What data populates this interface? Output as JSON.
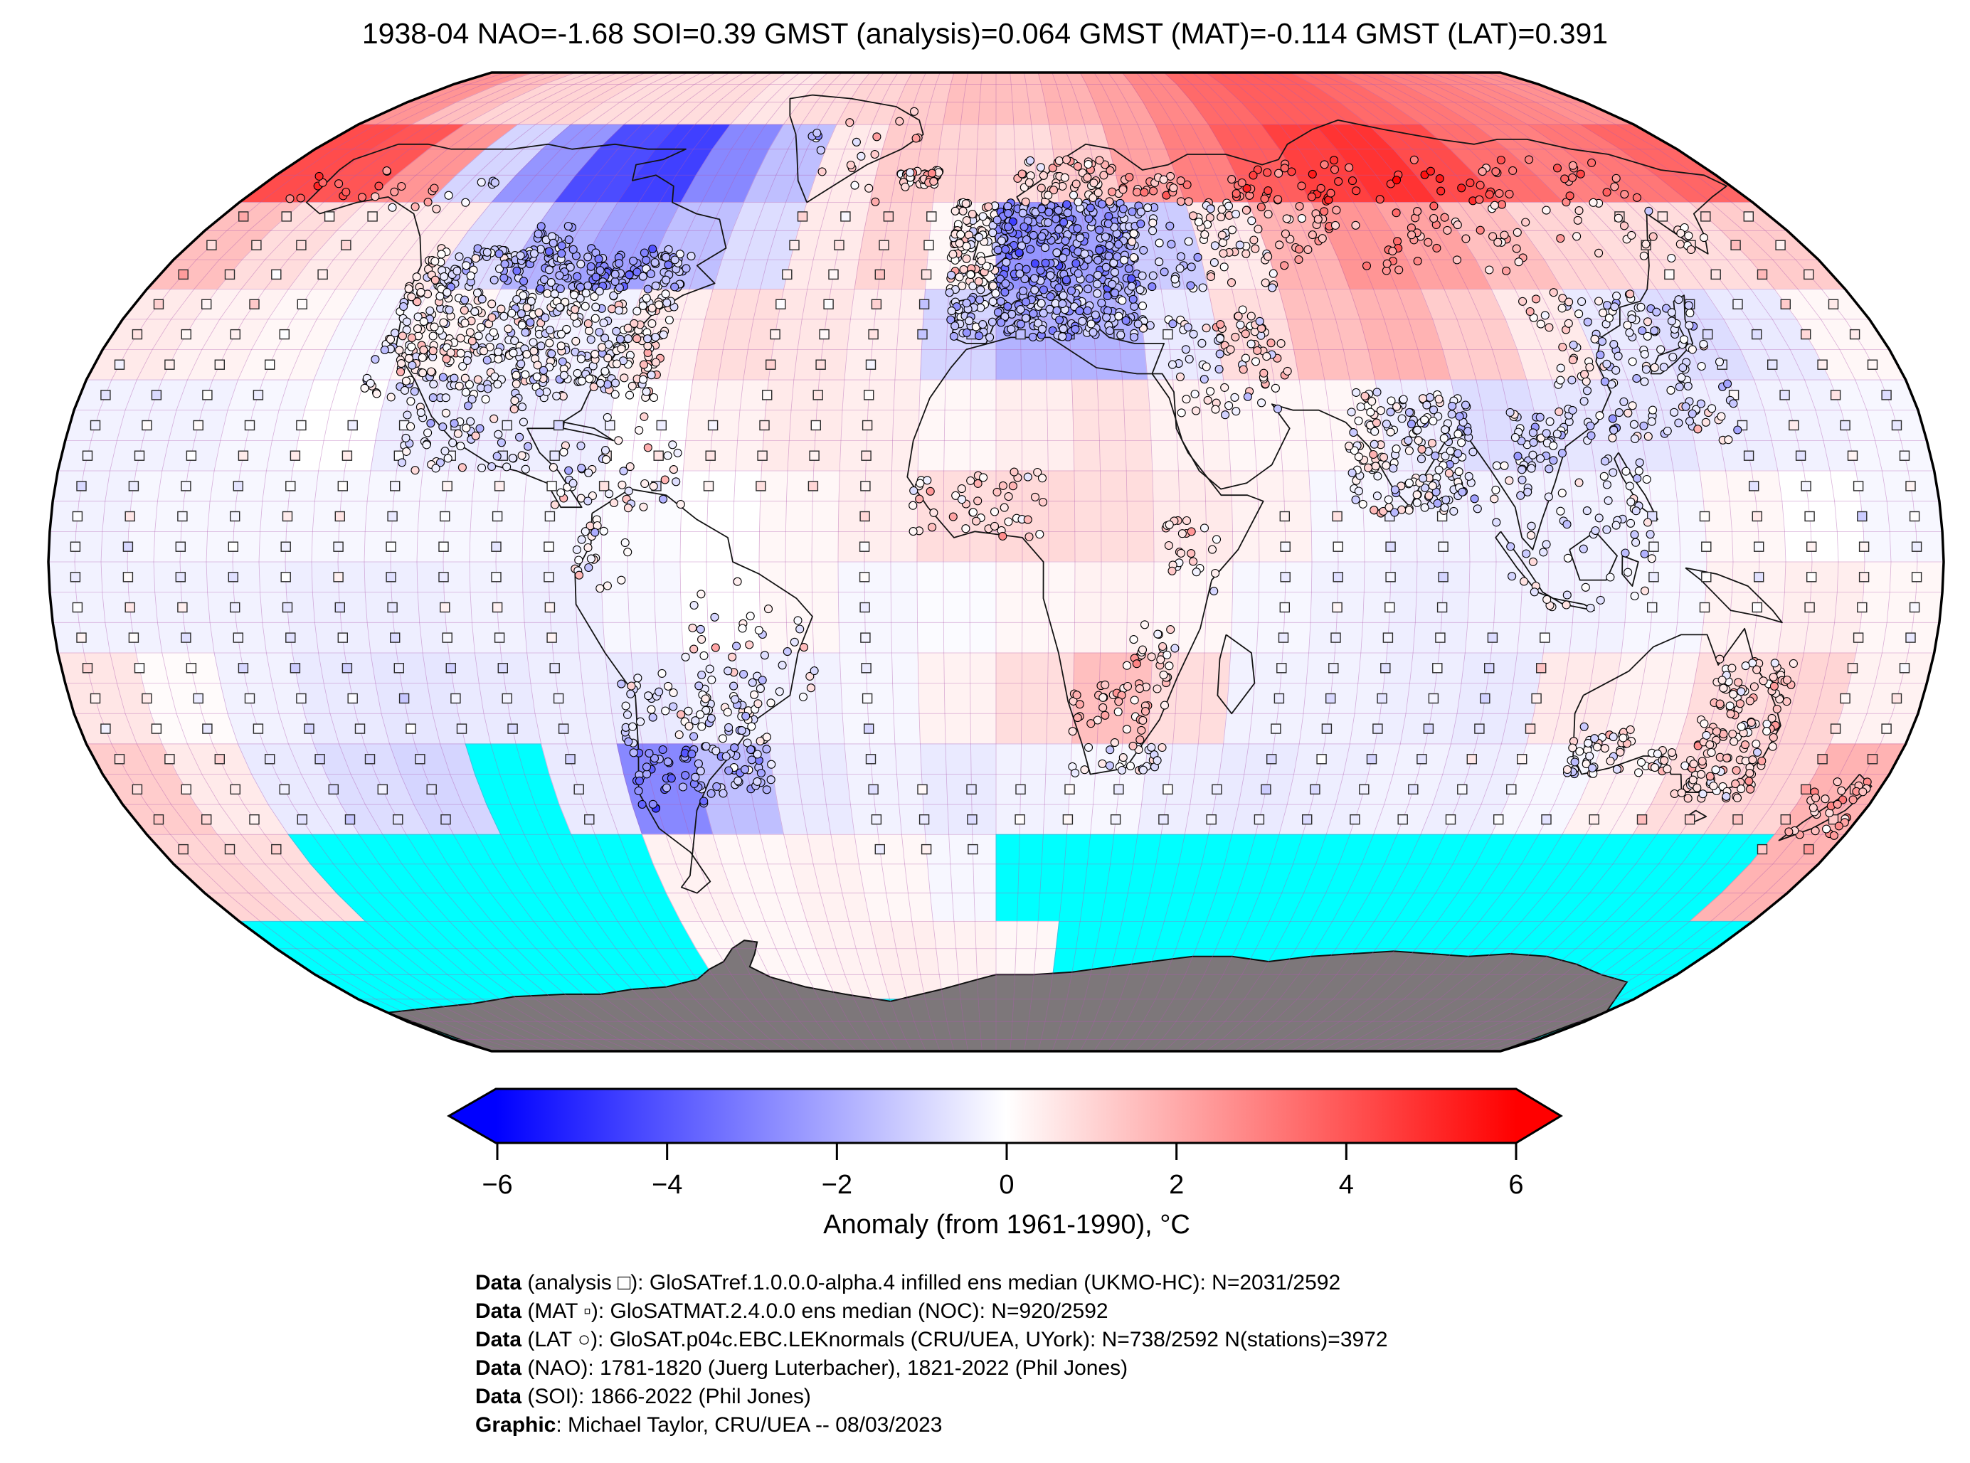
{
  "title": "1938-04 NAO=-1.68 SOI=0.39 GMST (analysis)=0.064 GMST (MAT)=-0.114 GMST (LAT)=0.391",
  "colorbar": {
    "label": "Anomaly (from 1961-1990), °C",
    "tick_labels": [
      "−6",
      "−4",
      "−2",
      "0",
      "2",
      "4",
      "6"
    ],
    "tick_values": [
      -6,
      -4,
      -2,
      0,
      2,
      4,
      6
    ]
  },
  "footer": {
    "lines": [
      {
        "bold": "Data",
        "rest": " (analysis □): GloSATref.1.0.0.0-alpha.4 infilled ens median (UKMO-HC): N=2031/2592"
      },
      {
        "bold": "Data",
        "rest": " (MAT ▫): GloSATMAT.2.4.0.0 ens median (NOC): N=920/2592"
      },
      {
        "bold": "Data",
        "rest": " (LAT ○): GloSAT.p04c.EBC.LEKnormals (CRU/UEA, UYork): N=738/2592 N(stations)=3972"
      },
      {
        "bold": "Data",
        "rest": " (NAO): 1781-1820 (Juerg Luterbacher), 1821-2022 (Phil Jones)"
      },
      {
        "bold": "Data",
        "rest": " (SOI): 1866-2022 (Phil Jones)"
      },
      {
        "bold": "Graphic",
        "rest": ": Michael Taylor, CRU/UEA -- 08/03/2023"
      }
    ]
  },
  "chart_data": {
    "type": "heatmap",
    "projection": "robinson",
    "date": "1938-04",
    "indices": {
      "NAO": -1.68,
      "SOI": 0.39,
      "GMST_analysis": 0.064,
      "GMST_MAT": -0.114,
      "GMST_LAT": 0.391
    },
    "anomaly_units": "°C anomaly from 1961-1990",
    "colormap": {
      "min": -6,
      "max": 6,
      "low": "#0000ff",
      "mid": "#ffffff",
      "high": "#ff0000"
    },
    "colors": {
      "missing_data": "#00ffff",
      "antarctica_land": "#7d777a",
      "graticule": "#b05ab0",
      "coastline": "#141414",
      "outline": "#000000"
    },
    "graticule_step_deg": 5,
    "legend_counts": {
      "analysis": "N=2031/2592",
      "mat": "N=920/2592",
      "lat": "N=738/2592",
      "stations": "N(stations)=3972"
    },
    "grid": {
      "lat_start": 90,
      "lat_step": -15,
      "lon_start": -180,
      "lon_step": 15,
      "rows": 12,
      "cols": 24,
      "missing_value": null,
      "values": [
        [
          2.5,
          1.5,
          1.0,
          1.0,
          0.8,
          0.8,
          0.8,
          0.6,
          0.8,
          1.0,
          1.2,
          1.5,
          1.5,
          1.8,
          2.2,
          2.8,
          3.5,
          3.8,
          3.8,
          3.5,
          3.2,
          3.0,
          2.8,
          2.6
        ],
        [
          4.2,
          4.0,
          2.5,
          -1.0,
          -2.5,
          -4.2,
          -4.5,
          -2.8,
          -1.5,
          0.5,
          1.2,
          1.0,
          0.8,
          1.2,
          2.2,
          3.0,
          3.8,
          4.5,
          4.8,
          4.2,
          3.4,
          3.0,
          3.2,
          3.6
        ],
        [
          1.5,
          0.8,
          0.5,
          0.5,
          -0.8,
          -1.8,
          -2.2,
          -1.5,
          -0.8,
          0.5,
          1.0,
          0.2,
          -2.5,
          -2.2,
          -1.2,
          0.5,
          1.8,
          2.5,
          2.2,
          1.5,
          1.0,
          0.8,
          0.8,
          1.2
        ],
        [
          0.5,
          0.3,
          0.2,
          -0.2,
          0.2,
          -0.3,
          -0.3,
          0.4,
          0.8,
          0.6,
          0.4,
          -1.0,
          -1.8,
          -1.8,
          -0.5,
          0.8,
          1.5,
          1.8,
          1.2,
          0.5,
          -0.5,
          -0.8,
          -0.5,
          0.2
        ],
        [
          -0.3,
          -0.3,
          -0.2,
          0.0,
          -0.4,
          -0.4,
          -0.4,
          0.0,
          0.3,
          0.5,
          0.4,
          0.2,
          0.4,
          0.7,
          0.3,
          0.2,
          0.2,
          -0.4,
          -0.8,
          -0.6,
          -0.6,
          -0.4,
          -0.3,
          -0.2
        ],
        [
          -0.3,
          -0.2,
          -0.2,
          -0.2,
          -0.2,
          -0.2,
          -0.2,
          -0.1,
          0.0,
          0.2,
          0.4,
          0.8,
          0.9,
          0.8,
          0.5,
          0.3,
          -0.2,
          -0.3,
          -0.3,
          -0.3,
          -0.2,
          0.2,
          0.0,
          -0.2
        ],
        [
          -0.3,
          -0.3,
          -0.3,
          -0.4,
          -0.4,
          -0.3,
          -0.4,
          -0.2,
          0.0,
          0.2,
          -0.2,
          -0.1,
          0.2,
          0.3,
          0.2,
          -0.2,
          -0.3,
          -0.4,
          -0.3,
          -0.3,
          -0.2,
          0.3,
          0.4,
          0.2
        ],
        [
          0.6,
          0.1,
          -0.3,
          -0.5,
          -0.6,
          -0.5,
          -0.4,
          -0.5,
          -0.3,
          -0.3,
          -0.2,
          0.3,
          0.8,
          1.5,
          0.8,
          -0.3,
          -0.3,
          -0.4,
          -0.5,
          0.5,
          0.3,
          0.8,
          1.0,
          0.3
        ],
        [
          1.2,
          0.5,
          -0.5,
          -0.8,
          -1.0,
          null,
          -0.5,
          -2.8,
          -1.5,
          -0.5,
          -0.3,
          -0.5,
          -0.3,
          -0.2,
          -0.4,
          -0.5,
          -0.4,
          -0.3,
          -0.4,
          -0.2,
          0.3,
          0.8,
          1.0,
          1.8
        ],
        [
          1.0,
          0.8,
          null,
          null,
          null,
          null,
          null,
          0.3,
          0.2,
          0.3,
          0.2,
          -0.2,
          null,
          null,
          null,
          null,
          null,
          null,
          null,
          null,
          null,
          null,
          null,
          1.8
        ],
        [
          null,
          null,
          null,
          null,
          null,
          null,
          null,
          0.2,
          0.2,
          0.3,
          0.4,
          0.3,
          0.2,
          null,
          null,
          null,
          null,
          null,
          null,
          null,
          null,
          null,
          null,
          null
        ],
        [
          null,
          null,
          null,
          null,
          null,
          null,
          null,
          null,
          null,
          null,
          null,
          null,
          null,
          null,
          null,
          null,
          null,
          null,
          null,
          null,
          null,
          null,
          null,
          null
        ]
      ]
    }
  }
}
